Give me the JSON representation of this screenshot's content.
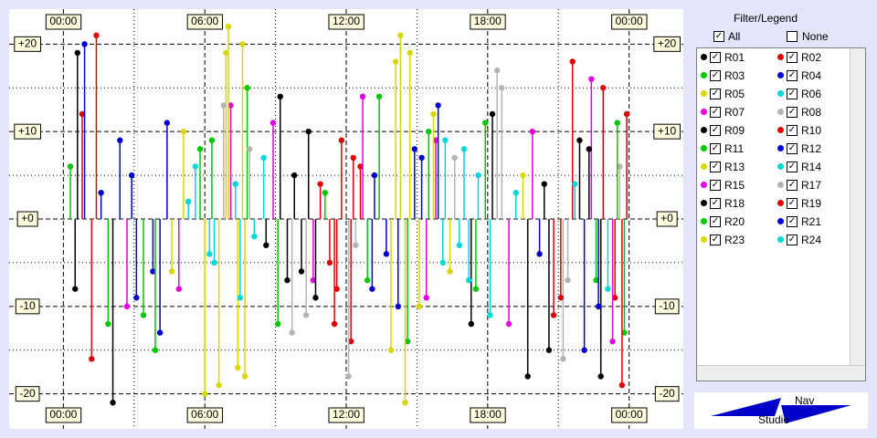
{
  "chart_data": {
    "type": "stem",
    "xlim": [
      -2.3,
      26.3
    ],
    "ylim": [
      -24,
      24
    ],
    "xticks": [
      {
        "value": 0,
        "label": "00:00"
      },
      {
        "value": 6,
        "label": "06:00"
      },
      {
        "value": 12,
        "label": "12:00"
      },
      {
        "value": 18,
        "label": "18:00"
      },
      {
        "value": 24,
        "label": "00:00"
      }
    ],
    "xminor": [
      3,
      9,
      15,
      21
    ],
    "yticks": [
      {
        "value": 20,
        "label": "+20"
      },
      {
        "value": 10,
        "label": "+10"
      },
      {
        "value": 0,
        "label": "+0"
      },
      {
        "value": -10,
        "label": "-10"
      },
      {
        "value": -20,
        "label": "-20"
      }
    ],
    "yminor": [
      15,
      5,
      -5,
      -15
    ],
    "grid": true,
    "series": [
      {
        "name": "R01",
        "color": "#000000",
        "x": [
          0.5,
          9.2,
          10.1,
          17.3,
          20.4,
          22.8
        ],
        "values": [
          -8,
          14,
          -6,
          -12,
          4,
          -18
        ]
      },
      {
        "name": "R02",
        "color": "#e00000",
        "x": [
          0.8,
          11.3,
          11.8,
          12.2,
          21.6,
          23.4
        ],
        "values": [
          12,
          -5,
          9,
          -14,
          18,
          -9
        ]
      },
      {
        "name": "R03",
        "color": "#00c800",
        "x": [
          0.3,
          3.4,
          7.8,
          12.9,
          15.5,
          23.8
        ],
        "values": [
          6,
          -11,
          15,
          -7,
          10,
          -13
        ]
      },
      {
        "name": "R04",
        "color": "#0000d0",
        "x": [
          1.6,
          3.1,
          4.4,
          13.7,
          14.9,
          22.1
        ],
        "values": [
          3,
          -9,
          11,
          -4,
          8,
          -15
        ]
      },
      {
        "name": "R05",
        "color": "#d8d800",
        "x": [
          4.6,
          6.9,
          7.4,
          14.3,
          15.1,
          19.5
        ],
        "values": [
          -6,
          19,
          -17,
          21,
          -10,
          5
        ]
      },
      {
        "name": "R06",
        "color": "#00d8d8",
        "x": [
          5.3,
          6.2,
          8.5,
          16.8,
          17.6,
          23.1
        ],
        "values": [
          2,
          -4,
          7,
          -3,
          5,
          -8
        ]
      },
      {
        "name": "R07",
        "color": "#e000e0",
        "x": [
          2.7,
          7.1,
          10.6,
          15.8,
          18.9,
          22.4
        ],
        "values": [
          -10,
          13,
          -7,
          9,
          -12,
          16
        ]
      },
      {
        "name": "R08",
        "color": "#b4b4b4",
        "x": [
          7.9,
          9.7,
          12.4,
          18.4,
          21.2,
          23.6
        ],
        "values": [
          8,
          -13,
          -3,
          17,
          -16,
          6
        ]
      },
      {
        "name": "R09",
        "color": "#000000",
        "x": [
          2.1,
          8.6,
          9.8,
          10.7,
          19.7,
          21.9
        ],
        "values": [
          -21,
          -3,
          5,
          -9,
          -18,
          9
        ]
      },
      {
        "name": "R10",
        "color": "#e00000",
        "x": [
          1.2,
          10.9,
          11.6,
          12.6,
          20.8,
          23.9
        ],
        "values": [
          -16,
          4,
          -8,
          6,
          -11,
          12
        ]
      },
      {
        "name": "R11",
        "color": "#00c800",
        "x": [
          1.9,
          5.8,
          11.1,
          14.6,
          17.9,
          22.6
        ],
        "values": [
          -12,
          8,
          3,
          -14,
          11,
          -7
        ]
      },
      {
        "name": "R12",
        "color": "#0000d0",
        "x": [
          2.4,
          3.8,
          13.2,
          14.2,
          15.9,
          20.2
        ],
        "values": [
          9,
          -6,
          5,
          -10,
          13,
          -4
        ]
      },
      {
        "name": "R13",
        "color": "#d8d800",
        "x": [
          5.1,
          6.6,
          7.6,
          13.9,
          14.7,
          16.4
        ],
        "values": [
          10,
          -19,
          20,
          -15,
          19,
          -6
        ]
      },
      {
        "name": "R14",
        "color": "#00d8d8",
        "x": [
          6.4,
          7.3,
          8.1,
          16.2,
          17.2,
          19.2
        ],
        "values": [
          -5,
          4,
          -2,
          9,
          -7,
          3
        ]
      },
      {
        "name": "R15",
        "color": "#e000e0",
        "x": [
          4.9,
          8.9,
          12.7,
          15.4,
          19.9,
          23.3
        ],
        "values": [
          -8,
          11,
          14,
          -9,
          10,
          -14
        ]
      },
      {
        "name": "R17",
        "color": "#b4b4b4",
        "x": [
          6.8,
          10.3,
          12.1,
          16.6,
          18.6,
          21.4
        ],
        "values": [
          13,
          -11,
          -18,
          7,
          15,
          -7
        ]
      },
      {
        "name": "R18",
        "color": "#000000",
        "x": [
          0.6,
          9.5,
          10.4,
          18.2,
          20.6,
          22.3
        ],
        "values": [
          19,
          -7,
          10,
          12,
          -15,
          8
        ]
      },
      {
        "name": "R19",
        "color": "#e00000",
        "x": [
          1.4,
          11.5,
          12.3,
          21.1,
          22.9,
          23.7
        ],
        "values": [
          21,
          -12,
          7,
          -9,
          15,
          -19
        ]
      },
      {
        "name": "R20",
        "color": "#00c800",
        "x": [
          3.9,
          6.3,
          9.1,
          13.4,
          17.5,
          23.5
        ],
        "values": [
          -15,
          9,
          -12,
          14,
          -8,
          11
        ]
      },
      {
        "name": "R21",
        "color": "#0000d0",
        "x": [
          0.9,
          2.9,
          4.1,
          13.1,
          15.2,
          22.7
        ],
        "values": [
          20,
          5,
          -13,
          -8,
          7,
          -10
        ]
      },
      {
        "name": "R23",
        "color": "#d8d800",
        "x": [
          6.0,
          7.0,
          7.7,
          14.1,
          14.5,
          15.7
        ],
        "values": [
          -20,
          22,
          -18,
          18,
          -21,
          12
        ]
      },
      {
        "name": "R24",
        "color": "#00d8d8",
        "x": [
          5.6,
          7.5,
          16.1,
          17.0,
          18.1,
          21.7
        ],
        "values": [
          6,
          -9,
          -5,
          8,
          -11,
          4
        ]
      }
    ]
  },
  "legend_panel": {
    "title": "Filter/Legend",
    "all": "All",
    "none": "None"
  },
  "logo": {
    "top": "Nav",
    "bottom": "Studio"
  }
}
